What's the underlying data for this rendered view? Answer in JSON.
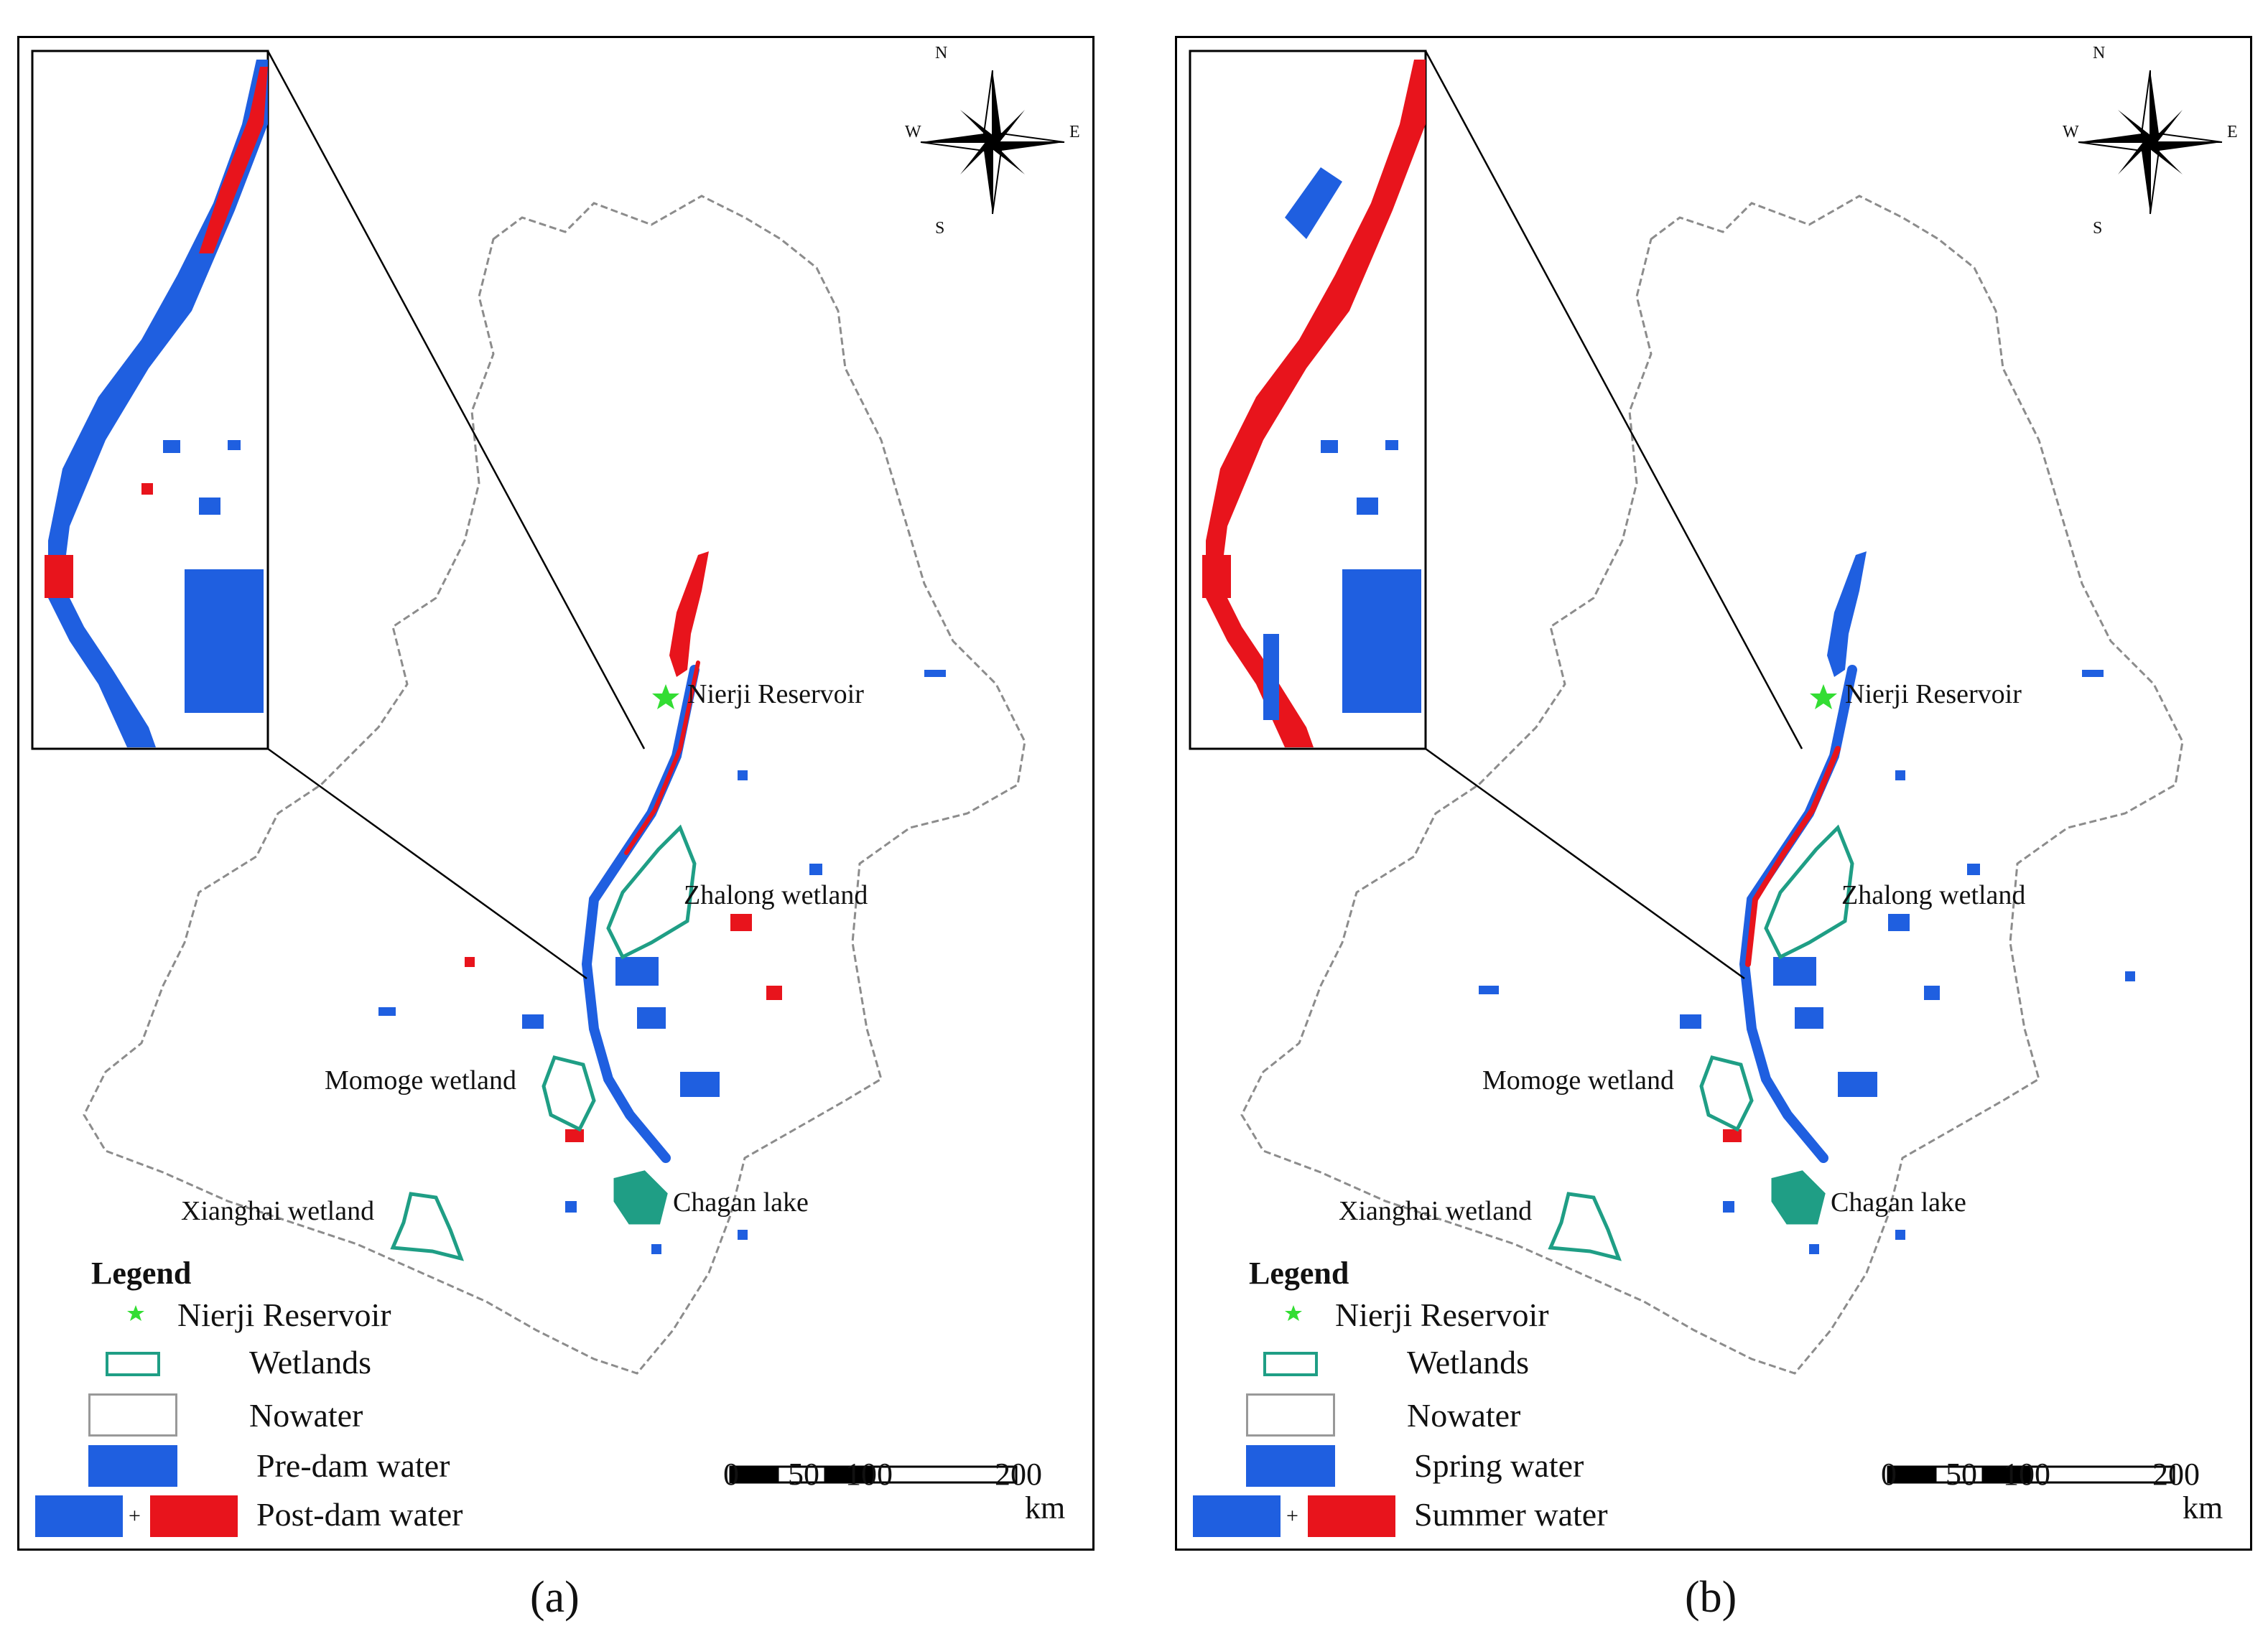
{
  "panels": [
    {
      "id": "a",
      "labels": {
        "nierji": "Nierji Reservoir",
        "zhalong": "Zhalong wetland",
        "momoge": "Momoge wetland",
        "chagan": "Chagan lake",
        "xianghai": "Xianghai wetland"
      },
      "legend": {
        "title": "Legend",
        "items": [
          "Nierji Reservoir",
          "Wetlands",
          "Nowater",
          "Pre-dam water",
          "Post-dam water"
        ],
        "plus": "+"
      },
      "caption": "(a)"
    },
    {
      "id": "b",
      "labels": {
        "nierji": "Nierji Reservoir",
        "zhalong": "Zhalong wetland",
        "momoge": "Momoge wetland",
        "chagan": "Chagan lake",
        "xianghai": "Xianghai wetland"
      },
      "legend": {
        "title": "Legend",
        "items": [
          "Nierji Reservoir",
          "Wetlands",
          "Nowater",
          "Spring water",
          "Summer water"
        ],
        "plus": "+"
      },
      "caption": "(b)"
    }
  ],
  "scale_bar": {
    "ticks": [
      "0",
      "50",
      "100",
      "200"
    ],
    "unit": "km"
  },
  "compass": {
    "n": "N",
    "s": "S",
    "e": "E",
    "w": "W"
  },
  "colors": {
    "water_blue": "#1f5fe0",
    "water_red": "#e8141c",
    "wetland_outline": "#1f9e85",
    "reservoir_star": "#33dd33",
    "boundary": "#8c8c8c"
  }
}
